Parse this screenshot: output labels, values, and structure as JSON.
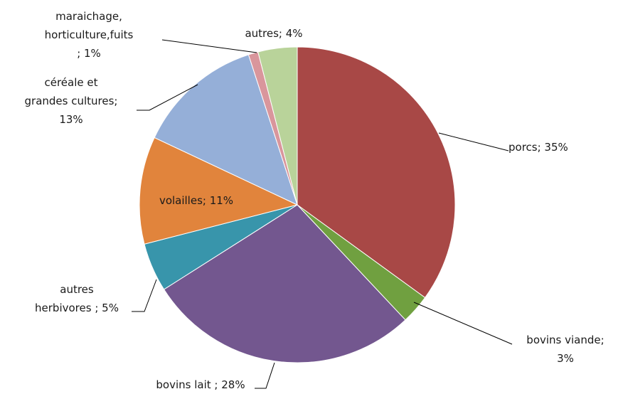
{
  "chart_data": {
    "type": "pie",
    "slices": [
      {
        "label": "porcs",
        "value": 35,
        "color": "#a84846",
        "label_lines": [
          "porcs; 35%"
        ]
      },
      {
        "label": "bovins viande",
        "value": 3,
        "color": "#70a040",
        "label_lines": [
          "bovins viande;",
          "3%"
        ]
      },
      {
        "label": "bovins lait",
        "value": 28,
        "color": "#73578f",
        "label_lines": [
          "bovins lait ; 28%"
        ]
      },
      {
        "label": "autres herbivores",
        "value": 5,
        "color": "#3895ab",
        "label_lines": [
          "autres",
          "herbivores ; 5%"
        ]
      },
      {
        "label": "volailles",
        "value": 11,
        "color": "#e1843c",
        "label_lines": [
          "volailles; 11%"
        ]
      },
      {
        "label": "céréale et grandes cultures",
        "value": 13,
        "color": "#95afd8",
        "label_lines": [
          "céréale et",
          "grandes cultures;",
          "13%"
        ]
      },
      {
        "label": "maraichage, horticulture,fuits",
        "value": 1,
        "color": "#d9969c",
        "label_lines": [
          "maraichage,",
          "horticulture,fuits",
          "; 1%"
        ]
      },
      {
        "label": "autres",
        "value": 4,
        "color": "#b9d39a",
        "label_lines": [
          "autres; 4%"
        ]
      }
    ],
    "legend": "none",
    "data_labels": "outside with leader lines"
  }
}
